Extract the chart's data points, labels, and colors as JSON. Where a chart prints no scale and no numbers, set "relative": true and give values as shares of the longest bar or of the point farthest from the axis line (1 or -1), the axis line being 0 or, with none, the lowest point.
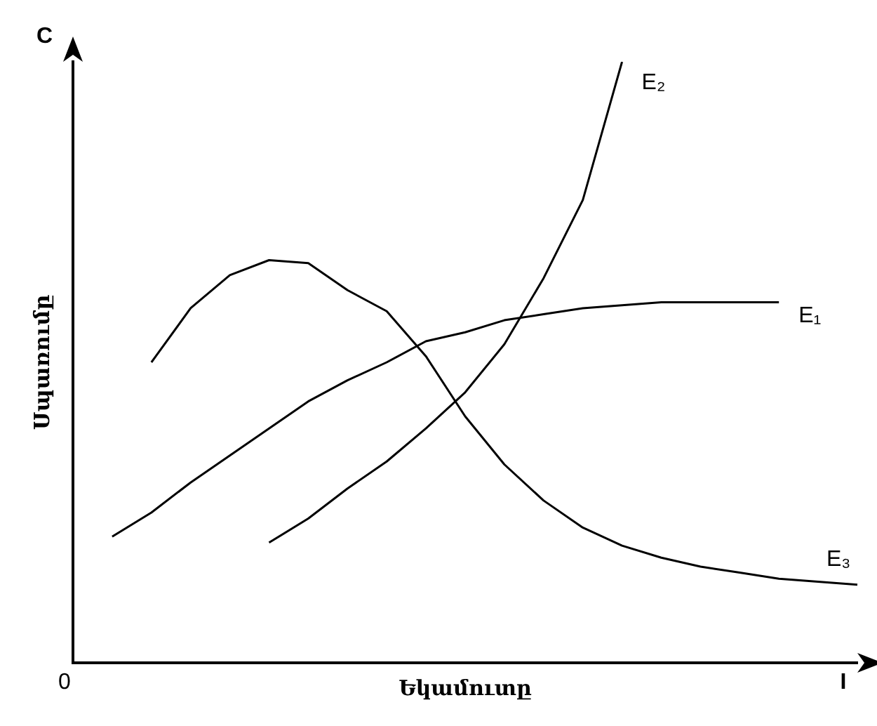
{
  "chart_data": {
    "type": "line",
    "relative": true,
    "xlabel": "Եկամուտը",
    "ylabel": "Սպառումը",
    "grid": false,
    "legend": false,
    "marker": "none",
    "line_style": "solid",
    "annotations": [
      "C",
      "0",
      "I"
    ],
    "categories": [
      null,
      null,
      null,
      null,
      null,
      null,
      null,
      null,
      null,
      null,
      null,
      null,
      null,
      null,
      null,
      null,
      null,
      null,
      null,
      null,
      null
    ],
    "series": [
      {
        "name": "E₁",
        "color": "#000000",
        "values": [
          null,
          0.21,
          0.25,
          0.3,
          0.345,
          0.39,
          0.435,
          0.47,
          0.5,
          0.535,
          0.55,
          0.57,
          0.58,
          0.59,
          0.595,
          0.6,
          0.6,
          0.6,
          0.6,
          null,
          null
        ]
      },
      {
        "name": "E₂",
        "color": "#000000",
        "values": [
          null,
          null,
          null,
          null,
          null,
          0.2,
          0.24,
          0.29,
          0.335,
          0.39,
          0.45,
          0.53,
          0.64,
          0.77,
          1.0,
          null,
          null,
          null,
          null,
          null,
          null
        ]
      },
      {
        "name": "E₃",
        "color": "#000000",
        "values": [
          null,
          null,
          0.5,
          0.59,
          0.645,
          0.67,
          0.665,
          0.62,
          0.585,
          0.51,
          0.41,
          0.33,
          0.27,
          0.225,
          0.195,
          0.175,
          0.16,
          0.15,
          0.14,
          0.135,
          0.13
        ]
      }
    ]
  }
}
